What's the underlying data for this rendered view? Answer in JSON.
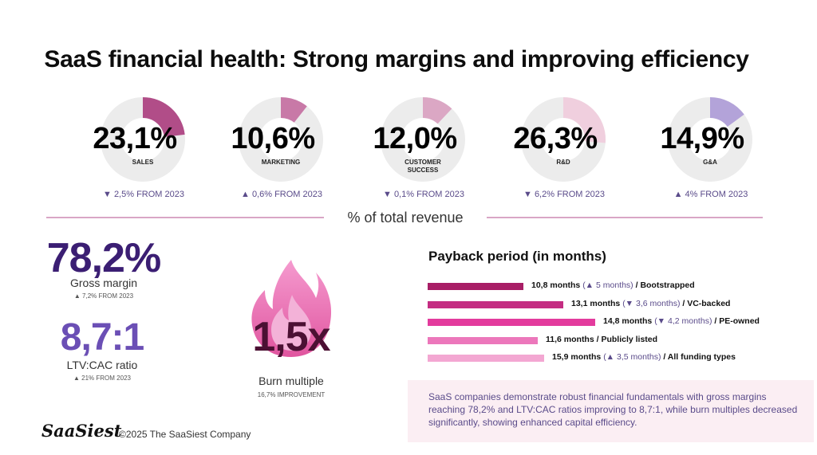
{
  "title": "SaaS financial health: Strong margins and improving efficiency",
  "colors": {
    "ring_bg": "#ececec",
    "sales": "#b14d88",
    "marketing": "#c879a7",
    "customer_success": "#dba7c4",
    "rd": "#f0cfde",
    "ga": "#b3a3d9",
    "purple_text": "#3b1e73",
    "purple_mid": "#5a4b8a"
  },
  "chart_data": [
    {
      "type": "pie",
      "title": "% of total revenue",
      "categories": [
        "SALES",
        "MARKETING",
        "CUSTOMER SUCCESS",
        "R&D",
        "G&A"
      ],
      "values": [
        23.1,
        10.6,
        12.0,
        26.3,
        14.9
      ],
      "value_labels": [
        "23,1%",
        "10,6%",
        "12,0%",
        "26,3%",
        "14,9%"
      ],
      "changes": [
        {
          "direction": "down",
          "text": "2,5% FROM 2023"
        },
        {
          "direction": "up",
          "text": "0,6% FROM 2023"
        },
        {
          "direction": "down",
          "text": "0,1% FROM 2023"
        },
        {
          "direction": "down",
          "text": "6,2% FROM 2023"
        },
        {
          "direction": "up",
          "text": "4% FROM 2023"
        }
      ]
    },
    {
      "type": "bar",
      "title": "Payback period (in months)",
      "categories": [
        "Bootstrapped",
        "VC-backed",
        "PE-owned",
        "Publicly listed",
        "All funding types"
      ],
      "values": [
        10.8,
        13.1,
        14.8,
        11.6,
        15.9
      ],
      "value_labels": [
        "10,8 months",
        "13,1 months",
        "14,8 months",
        "11,6 months",
        "15,9 months"
      ],
      "changes": [
        "(▲ 5 months)",
        "(▼ 3,6 months)",
        "(▼ 4,2 months)",
        "",
        "(▲ 3,5 months)"
      ],
      "colors": [
        "#a81e66",
        "#c42d82",
        "#e33b9d",
        "#ec77bb",
        "#f3a7d2"
      ]
    }
  ],
  "donut_markers": {
    "up": "▲",
    "down": "▼"
  },
  "donut_text": {
    "sales": {
      "pct": "23,1%",
      "label": "SALES",
      "change": "▼ 2,5% FROM 2023"
    },
    "marketing": {
      "pct": "10,6%",
      "label": "MARKETING",
      "change": "▲ 0,6% FROM 2023"
    },
    "customer_success": {
      "pct": "12,0%",
      "label": "CUSTOMER SUCCESS",
      "change": "▼ 0,1% FROM 2023"
    },
    "rd": {
      "pct": "26,3%",
      "label": "R&D",
      "change": "▼ 6,2% FROM 2023"
    },
    "ga": {
      "pct": "14,9%",
      "label": "G&A",
      "change": "▲ 4% FROM 2023"
    }
  },
  "divider_caption": "% of total revenue",
  "gross_margin": {
    "value": "78,2%",
    "label": "Gross margin",
    "change": "▲ 7,2% FROM 2023"
  },
  "ltv_cac": {
    "value": "8,7:1",
    "label": "LTV:CAC ratio",
    "change": "▲ 21% FROM 2023"
  },
  "burn": {
    "value": "1,5x",
    "label": "Burn multiple",
    "change": "16,7% IMPROVEMENT"
  },
  "payback_rows": [
    {
      "months": "10,8 months",
      "paren": "(▲ 5 months)",
      "suffix": " / Bootstrapped"
    },
    {
      "months": "13,1 months",
      "paren": "(▼ 3,6 months)",
      "suffix": " / VC-backed"
    },
    {
      "months": "14,8 months",
      "paren": "(▼ 4,2 months)",
      "suffix": " / PE-owned"
    },
    {
      "months": "11,6 months",
      "paren": "",
      "suffix": " / Publicly listed"
    },
    {
      "months": "15,9 months",
      "paren": "(▲ 3,5 months)",
      "suffix": " / All funding types"
    }
  ],
  "summary": "SaaS companies demonstrate robust financial fundamentals with gross margins reaching 78,2% and LTV:CAC ratios improving to 8,7:1, while burn multiples decreased significantly, showing enhanced capital efficiency.",
  "footer": {
    "logo": "SaaSiest",
    "copyright": "©2025 The SaaSiest Company"
  }
}
